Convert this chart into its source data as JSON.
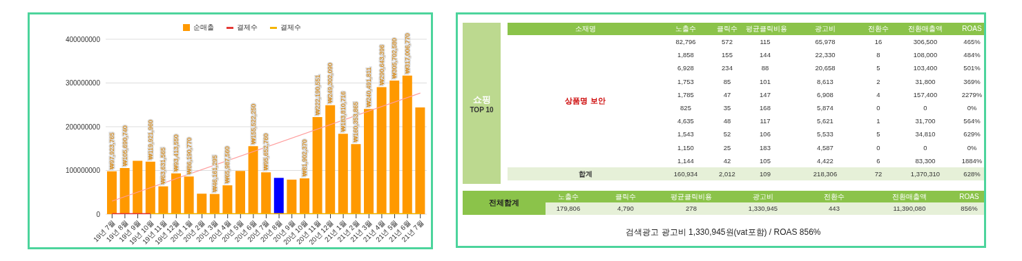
{
  "chart_data": [
    {
      "type": "bar",
      "categories": [
        "19년 7월",
        "19년 8월",
        "19년 9월",
        "19년 10월",
        "19년 11월",
        "19년 12월",
        "20년 1월",
        "20년 2월",
        "20년 3월",
        "20년 4월",
        "20년 5월",
        "20년 6월",
        "20년 7월",
        "20년 8월",
        "20년 9월",
        "20년 10월",
        "20년 11월",
        "20년 12월",
        "21년 1월",
        "21년 2월",
        "21년 3월",
        "21년 4월",
        "21년 5월",
        "21년 6월",
        "21년 7월"
      ],
      "series": [
        {
          "type": "bar",
          "name": "순매출",
          "color": "#ff9900",
          "colors": [
            "#ff9900",
            "#ff9900",
            "#ff9900",
            "#ff9900",
            "#ff9900",
            "#ff9900",
            "#ff9900",
            "#ff9900",
            "#ff9900",
            "#ff9900",
            "#ff9900",
            "#ff9900",
            "#ff9900",
            "#0000ff",
            "#ff9900",
            "#ff9900",
            "#ff9900",
            "#ff9900",
            "#ff9900",
            "#ff9900",
            "#ff9900",
            "#ff9900",
            "#ff9900",
            "#ff9900",
            "#ff9900"
          ],
          "values": [
            97923765,
            105690740,
            122000000,
            119921960,
            63631565,
            93413550,
            86190770,
            47000000,
            46161295,
            65987560,
            99000000,
            155522250,
            95652760,
            83000000,
            79000000,
            81902370,
            222190551,
            249302090,
            183810716,
            160353865,
            240491811,
            290643396,
            305702580,
            317006770,
            244000000
          ],
          "value_labels": [
            "₩97,923,765",
            "₩105,690,740",
            null,
            "₩119,921,960",
            "₩63,631,565",
            "₩93,413,550",
            "₩86,190,770",
            null,
            "₩46,161,295",
            "₩65,987,560",
            null,
            "₩155,522,250",
            "₩95,652,760",
            null,
            null,
            "₩81,902,370",
            "₩222,190,551",
            "₩249,302,090",
            "₩183,810,716",
            "₩160,353,865",
            "₩240,491,811",
            "₩290,643,396",
            "₩305,702,580",
            "₩317,006,770",
            null
          ]
        },
        {
          "type": "line",
          "name": "결제수",
          "color": "#e53935",
          "values": [
            0,
            0,
            0,
            0,
            null,
            null,
            null,
            null,
            null,
            null,
            null,
            null,
            null,
            null,
            null,
            null,
            null,
            null,
            null,
            null,
            null,
            null,
            null,
            null,
            null
          ]
        },
        {
          "type": "line",
          "name": "결제수",
          "color": "#f4b400",
          "values": [
            null,
            null,
            null,
            0,
            0,
            0,
            0,
            0,
            0,
            0,
            0,
            0,
            0,
            0,
            0,
            0,
            0,
            0,
            0,
            0,
            0,
            0,
            0,
            0,
            0
          ]
        },
        {
          "type": "line",
          "color": "#ff9c9c",
          "x": [
            "19년 7월",
            "21년 7월"
          ],
          "values": [
            30000000,
            277000000
          ]
        }
      ],
      "ylim": [
        0,
        400000000
      ],
      "yticks": [
        0,
        100000000,
        200000000,
        300000000,
        400000000
      ],
      "grid": "y",
      "legend": "top"
    },
    {
      "type": "other",
      "title": "쇼핑",
      "subtitle": "TOP 10",
      "categories": [
        "소재명",
        "노출수",
        "클릭수",
        "평균클릭비용",
        "광고비",
        "전환수",
        "전환매출액",
        "ROAS"
      ],
      "cell_labels": [
        [
          null,
          "82,796",
          "572",
          "115",
          "65,978",
          "16",
          "306,500",
          "465%"
        ],
        [
          null,
          "1,858",
          "155",
          "144",
          "22,330",
          "8",
          "108,000",
          "484%"
        ],
        [
          null,
          "6,928",
          "234",
          "88",
          "20,658",
          "5",
          "103,400",
          "501%"
        ],
        [
          null,
          "1,753",
          "85",
          "101",
          "8,613",
          "2",
          "31,800",
          "369%"
        ],
        [
          null,
          "1,785",
          "47",
          "147",
          "6,908",
          "4",
          "157,400",
          "2279%"
        ],
        [
          null,
          "825",
          "35",
          "168",
          "5,874",
          "0",
          "0",
          "0%"
        ],
        [
          null,
          "4,635",
          "48",
          "117",
          "5,621",
          "1",
          "31,700",
          "564%"
        ],
        [
          null,
          "1,543",
          "52",
          "106",
          "5,533",
          "5",
          "34,810",
          "629%"
        ],
        [
          null,
          "1,150",
          "25",
          "183",
          "4,587",
          "0",
          "0",
          "0%"
        ],
        [
          null,
          "1,144",
          "42",
          "105",
          "4,422",
          "6",
          "83,300",
          "1884%"
        ],
        [
          "합계",
          "160,934",
          "2,012",
          "109",
          "218,306",
          "72",
          "1,370,310",
          "628%"
        ]
      ],
      "annotations": [
        "상품명 보안"
      ]
    },
    {
      "type": "other",
      "title": "전체합계",
      "categories": [
        "노출수",
        "클릭수",
        "평균클릭비용",
        "광고비",
        "전환수",
        "전환매출액",
        "ROAS"
      ],
      "cell_labels": [
        [
          "179,806",
          "4,790",
          "278",
          "1,330,945",
          "443",
          "11,390,080",
          "856%"
        ]
      ],
      "annotations": [
        "검색광고 광고비 1,330,945원(vat포함) / ROAS 856%"
      ]
    }
  ]
}
